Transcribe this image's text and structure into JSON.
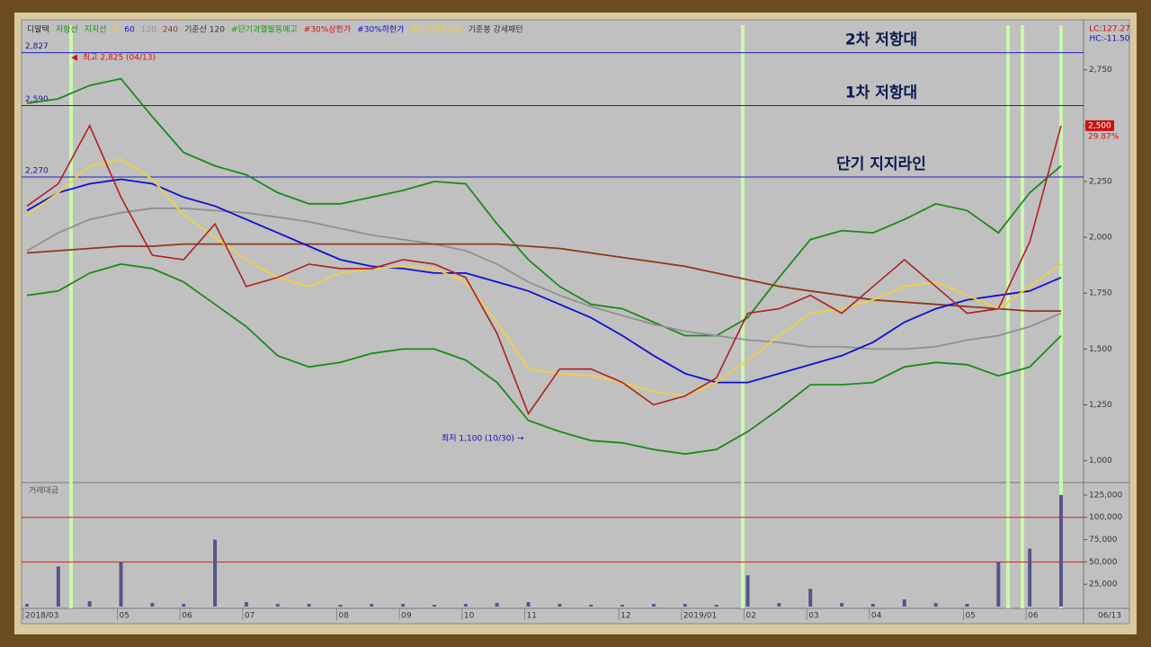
{
  "chart_data": {
    "type": "line",
    "stock_name": "디알텍",
    "top_right": [
      "LC:127.27",
      "HC:-11.50"
    ],
    "categories": [
      "2018/03",
      null,
      null,
      "05",
      null,
      "06",
      null,
      "07",
      null,
      null,
      "08",
      null,
      "09",
      null,
      "10",
      null,
      "11",
      null,
      null,
      "12",
      null,
      "2019/01",
      null,
      "02",
      null,
      "03",
      null,
      "04",
      null,
      null,
      "05",
      null,
      "06",
      null
    ],
    "x_end_label": "06/13",
    "series": [
      {
        "color": "#b02020",
        "values": [
          2140,
          2240,
          2500,
          2180,
          1920,
          1900,
          2060,
          1780,
          1820,
          1880,
          1860,
          1860,
          1900,
          1880,
          1820,
          1570,
          1210,
          1410,
          1410,
          1350,
          1250,
          1290,
          1370,
          1660,
          1680,
          1740,
          1660,
          1780,
          1900,
          1780,
          1660,
          1680,
          1980,
          2500
        ]
      },
      {
        "name": "저항선",
        "color": "#1a8a1a",
        "values": [
          2600,
          2620,
          2680,
          2710,
          2540,
          2380,
          2320,
          2280,
          2200,
          2150,
          2150,
          2180,
          2210,
          2250,
          2240,
          2060,
          1900,
          1780,
          1700,
          1680,
          1620,
          1560,
          1560,
          1640,
          1820,
          1990,
          2030,
          2020,
          2080,
          2150,
          2120,
          2020,
          2200,
          2320
        ]
      },
      {
        "name": "지지선",
        "color": "#1a8a1a",
        "values": [
          1740,
          1760,
          1840,
          1880,
          1860,
          1800,
          1700,
          1600,
          1470,
          1420,
          1440,
          1480,
          1500,
          1500,
          1450,
          1350,
          1180,
          1130,
          1090,
          1080,
          1050,
          1030,
          1050,
          1130,
          1230,
          1340,
          1340,
          1350,
          1420,
          1440,
          1430,
          1380,
          1420,
          1560
        ]
      },
      {
        "name": "5",
        "color": "#f0d040",
        "values": [
          2100,
          2200,
          2320,
          2350,
          2260,
          2100,
          2000,
          1900,
          1820,
          1780,
          1840,
          1860,
          1870,
          1860,
          1800,
          1620,
          1410,
          1390,
          1380,
          1350,
          1310,
          1290,
          1350,
          1450,
          1560,
          1660,
          1680,
          1720,
          1780,
          1800,
          1740,
          1680,
          1780,
          1880
        ]
      },
      {
        "name": "60",
        "color": "#1010d0",
        "values": [
          2120,
          2200,
          2240,
          2260,
          2240,
          2180,
          2140,
          2080,
          2020,
          1960,
          1900,
          1870,
          1860,
          1840,
          1840,
          1800,
          1760,
          1700,
          1640,
          1560,
          1470,
          1390,
          1350,
          1350,
          1390,
          1430,
          1470,
          1530,
          1620,
          1680,
          1720,
          1740,
          1760,
          1820
        ]
      },
      {
        "name": "120",
        "color": "#909090",
        "values": [
          1940,
          2020,
          2080,
          2110,
          2130,
          2130,
          2120,
          2110,
          2090,
          2070,
          2040,
          2010,
          1990,
          1970,
          1940,
          1880,
          1800,
          1740,
          1690,
          1650,
          1610,
          1580,
          1560,
          1540,
          1530,
          1510,
          1510,
          1500,
          1500,
          1510,
          1540,
          1560,
          1600,
          1660
        ]
      },
      {
        "name": "240",
        "color": "#8b3a1a",
        "values": [
          1930,
          1940,
          1950,
          1960,
          1960,
          1970,
          1970,
          1970,
          1970,
          1970,
          1970,
          1970,
          1970,
          1970,
          1970,
          1970,
          1960,
          1950,
          1930,
          1910,
          1890,
          1870,
          1840,
          1810,
          1780,
          1760,
          1740,
          1720,
          1710,
          1700,
          1690,
          1680,
          1670,
          1670
        ]
      }
    ],
    "legend_extra": [
      {
        "text": "기준선 120",
        "color": "#333333"
      },
      {
        "text": "#단기과열발동예고",
        "color": "#1a9a1a"
      },
      {
        "text": "#30%상한가",
        "color": "#d01010"
      },
      {
        "text": "#30%하한가",
        "color": "#1010c0"
      },
      {
        "text": "#단기과열지정",
        "color": "#e8d040"
      },
      {
        "text": "기준봉 강세패턴",
        "color": "#333333"
      }
    ],
    "ylim": [
      910,
      2950
    ],
    "yticks": [
      {
        "value": 1000,
        "label": "1,000"
      },
      {
        "value": 1250,
        "label": "1,250"
      },
      {
        "value": 1500,
        "label": "1,500"
      },
      {
        "value": 1750,
        "label": "1,750"
      },
      {
        "value": 2000,
        "label": "2,000"
      },
      {
        "value": 2250,
        "label": "2,250"
      },
      {
        "value": 2500,
        "label": "2,500"
      },
      {
        "value": 2750,
        "label": "2,750"
      }
    ],
    "levels": [
      {
        "value": 2827,
        "label": "2,827",
        "note": "2차 저항대"
      },
      {
        "value": 2590,
        "label": "2,590",
        "note": "1차 저항대"
      },
      {
        "value": 2270,
        "label": "2,270",
        "note": "단기 지지라인"
      }
    ],
    "annotations": [
      "최고 2,825 (04/13)",
      "최저 1,100 (10/30)"
    ],
    "last_price": {
      "value": 2500,
      "label": "2,500"
    },
    "last_change": "29.87%",
    "volume": {
      "title": "거래대금",
      "color": "#55558a",
      "values": [
        3000,
        45000,
        6000,
        50000,
        4000,
        3000,
        75000,
        5000,
        3000,
        3000,
        2000,
        3000,
        3000,
        2000,
        3000,
        4000,
        5000,
        3000,
        2000,
        2000,
        3000,
        3000,
        2000,
        35000,
        4000,
        20000,
        4000,
        3000,
        8000,
        4000,
        3000,
        50000,
        65000,
        125000
      ],
      "ylim": [
        0,
        136000
      ],
      "yticks": [
        {
          "value": 25000,
          "label": "25,000"
        },
        {
          "value": 50000,
          "label": "50,000"
        },
        {
          "value": 75000,
          "label": "75,000"
        },
        {
          "value": 100000,
          "label": "100,000"
        },
        {
          "value": 125000,
          "label": "125,000"
        }
      ],
      "ref_lines": [
        100000,
        50000
      ]
    }
  }
}
